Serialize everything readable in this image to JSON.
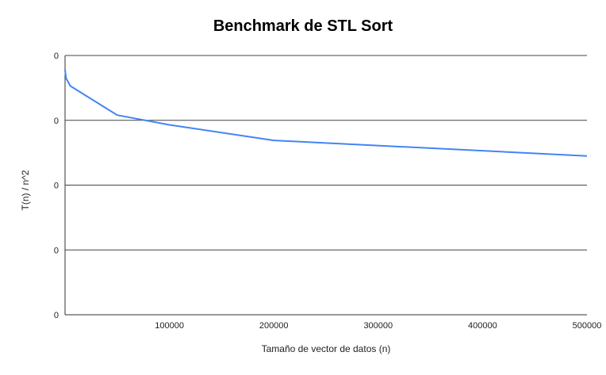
{
  "chart_data": {
    "type": "line",
    "title": "Benchmark de STL Sort",
    "xlabel": "Tamaño de vector de datos (n)",
    "ylabel": "T(n) / n^2",
    "x_ticks": [
      "100000",
      "200000",
      "300000",
      "400000",
      "500000"
    ],
    "y_ticks": [
      "0",
      "0",
      "0",
      "0",
      "0"
    ],
    "xlim": [
      0,
      500000
    ],
    "ylim": [
      0,
      4
    ],
    "grid": true,
    "line_color": "#4285f4",
    "series": [
      {
        "x": [
          1000,
          5000,
          50000,
          100000,
          200000,
          500000
        ],
        "y": [
          3.65,
          3.53,
          3.08,
          2.93,
          2.69,
          2.45
        ]
      }
    ]
  }
}
